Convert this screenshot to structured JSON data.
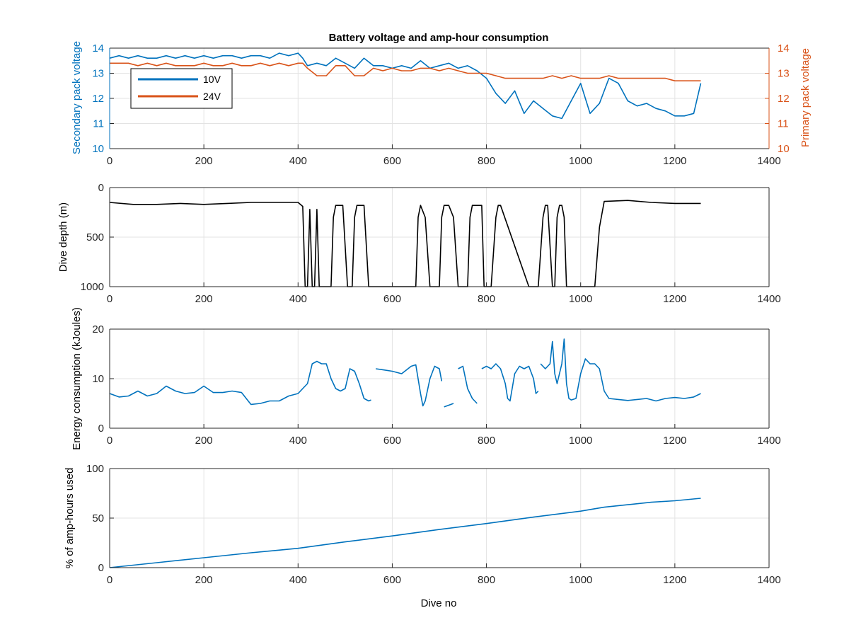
{
  "chart_data": [
    {
      "type": "line",
      "title": "Battery voltage and amp-hour consumption",
      "xlabel": "",
      "ylabel_left": "Secondary pack voltage",
      "ylabel_right": "Primary pack voltage",
      "xlim": [
        0,
        1400
      ],
      "ylim_left": [
        10,
        14
      ],
      "ylim_right": [
        10,
        14
      ],
      "xticks": [
        "0",
        "200",
        "400",
        "600",
        "800",
        "1000",
        "1200",
        "1400"
      ],
      "yticks_left": [
        "10",
        "11",
        "12",
        "13",
        "14"
      ],
      "yticks_right": [
        "10",
        "11",
        "12",
        "13",
        "14"
      ],
      "grid": true,
      "legend": {
        "position": "top-left",
        "entries": [
          "10V",
          "24V"
        ]
      },
      "series": [
        {
          "name": "10V",
          "axis": "left",
          "color": "#0072BD",
          "x": [
            0,
            20,
            40,
            60,
            80,
            100,
            120,
            140,
            160,
            180,
            200,
            220,
            240,
            260,
            280,
            300,
            320,
            340,
            360,
            380,
            400,
            410,
            420,
            440,
            460,
            480,
            500,
            520,
            540,
            560,
            580,
            600,
            620,
            640,
            660,
            680,
            700,
            720,
            740,
            760,
            780,
            800,
            820,
            840,
            860,
            880,
            900,
            920,
            940,
            960,
            980,
            1000,
            1020,
            1040,
            1060,
            1080,
            1100,
            1120,
            1140,
            1160,
            1180,
            1200,
            1220,
            1240,
            1255
          ],
          "y": [
            13.6,
            13.7,
            13.6,
            13.7,
            13.6,
            13.6,
            13.7,
            13.6,
            13.7,
            13.6,
            13.7,
            13.6,
            13.7,
            13.7,
            13.6,
            13.7,
            13.7,
            13.6,
            13.8,
            13.7,
            13.8,
            13.6,
            13.3,
            13.4,
            13.3,
            13.6,
            13.4,
            13.2,
            13.6,
            13.3,
            13.3,
            13.2,
            13.3,
            13.2,
            13.5,
            13.2,
            13.3,
            13.4,
            13.2,
            13.3,
            13.1,
            12.8,
            12.2,
            11.8,
            12.3,
            11.4,
            11.9,
            11.6,
            11.3,
            11.2,
            11.9,
            12.6,
            11.4,
            11.8,
            12.8,
            12.6,
            11.9,
            11.7,
            11.8,
            11.6,
            11.5,
            11.3,
            11.3,
            11.4,
            12.6
          ]
        },
        {
          "name": "24V",
          "axis": "right",
          "color": "#D95319",
          "x": [
            0,
            20,
            40,
            60,
            80,
            100,
            120,
            140,
            160,
            180,
            200,
            220,
            240,
            260,
            280,
            300,
            320,
            340,
            360,
            380,
            400,
            410,
            420,
            440,
            460,
            480,
            500,
            520,
            540,
            560,
            580,
            600,
            620,
            640,
            660,
            680,
            700,
            720,
            740,
            760,
            780,
            800,
            820,
            840,
            860,
            880,
            900,
            920,
            940,
            960,
            980,
            1000,
            1020,
            1040,
            1060,
            1080,
            1100,
            1120,
            1140,
            1160,
            1180,
            1200,
            1220,
            1240,
            1255
          ],
          "y": [
            13.4,
            13.4,
            13.4,
            13.3,
            13.4,
            13.3,
            13.4,
            13.3,
            13.3,
            13.3,
            13.4,
            13.3,
            13.3,
            13.4,
            13.3,
            13.3,
            13.4,
            13.3,
            13.4,
            13.3,
            13.4,
            13.4,
            13.2,
            12.9,
            12.9,
            13.3,
            13.3,
            12.9,
            12.9,
            13.2,
            13.1,
            13.2,
            13.1,
            13.1,
            13.2,
            13.2,
            13.1,
            13.2,
            13.1,
            13.0,
            13.0,
            13.0,
            12.9,
            12.8,
            12.8,
            12.8,
            12.8,
            12.8,
            12.9,
            12.8,
            12.9,
            12.8,
            12.8,
            12.8,
            12.9,
            12.8,
            12.8,
            12.8,
            12.8,
            12.8,
            12.8,
            12.7,
            12.7,
            12.7,
            12.7
          ]
        }
      ]
    },
    {
      "type": "line",
      "title": "",
      "xlabel": "",
      "ylabel": "Dive depth (m)",
      "xlim": [
        0,
        1400
      ],
      "ylim": [
        0,
        1000
      ],
      "y_reversed": true,
      "xticks": [
        "0",
        "200",
        "400",
        "600",
        "800",
        "1000",
        "1200",
        "1400"
      ],
      "yticks": [
        "0",
        "500",
        "1000"
      ],
      "grid": true,
      "series": [
        {
          "color": "#000000",
          "x": [
            0,
            50,
            100,
            150,
            200,
            250,
            300,
            350,
            400,
            410,
            415,
            420,
            425,
            430,
            435,
            440,
            445,
            470,
            475,
            480,
            495,
            505,
            510,
            515,
            520,
            525,
            540,
            550,
            560,
            565,
            570,
            650,
            655,
            660,
            670,
            680,
            685,
            690,
            700,
            705,
            710,
            720,
            730,
            740,
            745,
            750,
            760,
            765,
            770,
            790,
            795,
            800,
            810,
            820,
            825,
            830,
            890,
            895,
            900,
            910,
            920,
            925,
            930,
            940,
            945,
            950,
            955,
            960,
            965,
            970,
            1000,
            1005,
            1010,
            1030,
            1040,
            1050,
            1100,
            1150,
            1200,
            1255
          ],
          "y": [
            150,
            170,
            170,
            160,
            170,
            160,
            150,
            150,
            150,
            190,
            1000,
            1000,
            220,
            1000,
            1000,
            220,
            1000,
            1000,
            300,
            180,
            180,
            1000,
            1000,
            1000,
            300,
            180,
            180,
            1000,
            1000,
            1000,
            1000,
            1000,
            300,
            180,
            300,
            1000,
            1000,
            1000,
            1000,
            300,
            180,
            180,
            300,
            1000,
            1000,
            1000,
            1000,
            300,
            180,
            180,
            1000,
            1000,
            1000,
            300,
            180,
            180,
            1000,
            1000,
            1000,
            1000,
            300,
            180,
            180,
            1000,
            1000,
            300,
            180,
            180,
            300,
            1000,
            1000,
            1000,
            1000,
            1000,
            400,
            140,
            130,
            150,
            160,
            160
          ]
        }
      ]
    },
    {
      "type": "line",
      "title": "",
      "xlabel": "",
      "ylabel": "Energy consumption (kJoules)",
      "xlim": [
        0,
        1400
      ],
      "ylim": [
        0,
        20
      ],
      "xticks": [
        "0",
        "200",
        "400",
        "600",
        "800",
        "1000",
        "1200",
        "1400"
      ],
      "yticks": [
        "0",
        "10",
        "20"
      ],
      "grid": true,
      "series": [
        {
          "color": "#0072BD",
          "segments": [
            {
              "x": [
                0,
                20,
                40,
                60,
                80,
                100,
                120,
                140,
                160,
                180,
                200,
                220,
                240,
                260,
                280,
                300,
                320,
                340,
                360,
                380,
                400,
                410,
                420,
                430,
                440,
                450,
                460,
                470,
                480,
                490,
                500,
                510,
                520,
                530,
                540,
                550,
                555
              ],
              "y": [
                7,
                6.3,
                6.5,
                7.5,
                6.5,
                7,
                8.5,
                7.5,
                7,
                7.2,
                8.5,
                7.2,
                7.2,
                7.5,
                7.2,
                4.8,
                5,
                5.5,
                5.5,
                6.5,
                7,
                8,
                9,
                13,
                13.5,
                13,
                13,
                10,
                8,
                7.5,
                8,
                12,
                11.5,
                9,
                6,
                5.5,
                5.7
              ]
            },
            {
              "x": [
                565,
                580,
                600,
                620,
                640,
                650,
                660,
                665,
                670,
                680,
                690,
                700,
                705
              ],
              "y": [
                12,
                11.8,
                11.5,
                11,
                12.5,
                12.8,
                7,
                4.5,
                5.5,
                10,
                12.5,
                12,
                9.5
              ]
            },
            {
              "x": [
                710,
                730
              ],
              "y": [
                4.3,
                5
              ]
            },
            {
              "x": [
                740,
                750,
                760,
                770,
                780
              ],
              "y": [
                12,
                12.5,
                8,
                6,
                5
              ]
            },
            {
              "x": [
                790,
                800,
                810,
                820,
                830,
                840,
                845,
                850,
                860,
                870,
                880,
                890,
                900,
                905,
                910
              ],
              "y": [
                12,
                12.5,
                12,
                13,
                12,
                9,
                6,
                5.5,
                11,
                12.5,
                12,
                12.5,
                10,
                7,
                7.5
              ]
            },
            {
              "x": [
                915,
                925,
                935,
                940,
                945,
                950,
                960,
                965,
                970,
                975,
                980,
                990,
                1000,
                1010,
                1020,
                1030,
                1040,
                1050,
                1060,
                1080,
                1100,
                1120,
                1140,
                1160,
                1180,
                1200,
                1220,
                1240,
                1255
              ],
              "y": [
                13,
                12,
                13,
                17.5,
                11,
                9,
                13,
                18,
                9,
                6,
                5.7,
                6,
                11,
                14,
                13,
                13,
                12,
                7.5,
                6,
                5.8,
                5.6,
                5.8,
                6,
                5.5,
                6,
                6.2,
                6,
                6.3,
                7
              ]
            }
          ]
        }
      ]
    },
    {
      "type": "line",
      "title": "",
      "xlabel": "Dive no",
      "ylabel": "% of amp-hours used",
      "xlim": [
        0,
        1400
      ],
      "ylim": [
        0,
        100
      ],
      "xticks": [
        "0",
        "200",
        "400",
        "600",
        "800",
        "1000",
        "1200",
        "1400"
      ],
      "yticks": [
        "0",
        "50",
        "100"
      ],
      "grid": true,
      "series": [
        {
          "color": "#0072BD",
          "x": [
            0,
            100,
            200,
            300,
            400,
            500,
            600,
            700,
            800,
            900,
            1000,
            1050,
            1100,
            1150,
            1200,
            1255
          ],
          "y": [
            0,
            5,
            10,
            15,
            19.5,
            26,
            32,
            38.5,
            44.5,
            51,
            57,
            61,
            63.5,
            66,
            67.5,
            70
          ]
        }
      ]
    }
  ]
}
